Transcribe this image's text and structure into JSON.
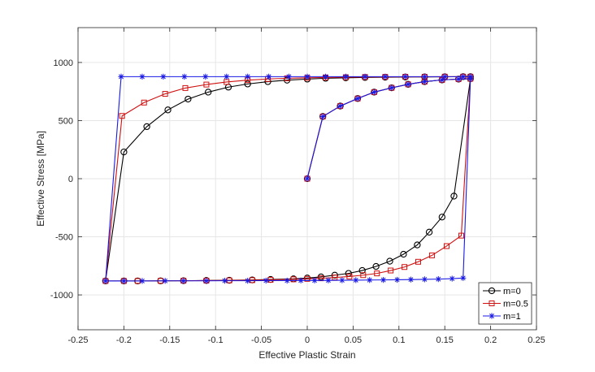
{
  "chart_data": {
    "type": "line",
    "xlabel": "Effective Plastic Strain",
    "ylabel": "Effective Stress [MPa]",
    "xlim": [
      -0.25,
      0.25
    ],
    "ylim": [
      -1300,
      1300
    ],
    "xticks": [
      -0.25,
      -0.2,
      -0.15,
      -0.1,
      -0.05,
      0,
      0.05,
      0.1,
      0.15,
      0.2,
      0.25
    ],
    "xtick_labels": [
      "-0.25",
      "-0.2",
      "-0.15",
      "-0.1",
      "-0.05",
      "0",
      "0.05",
      "0.1",
      "0.15",
      "0.2",
      "0.25"
    ],
    "yticks": [
      -1000,
      -500,
      0,
      500,
      1000
    ],
    "ytick_labels": [
      "-1000",
      "-500",
      "0",
      "500",
      "1000"
    ],
    "grid": true,
    "legend_position": "bottom-right",
    "series": [
      {
        "name": "m=0",
        "color": "#000000",
        "marker": "circle",
        "x": [
          0,
          0.017,
          0.036,
          0.055,
          0.073,
          0.092,
          0.11,
          0.128,
          0.147,
          0.165,
          0.178,
          0.16,
          0.147,
          0.133,
          0.12,
          0.105,
          0.09,
          0.075,
          0.06,
          0.045,
          0.03,
          0.015,
          0,
          -0.015,
          -0.04,
          -0.06,
          -0.085,
          -0.11,
          -0.135,
          -0.16,
          -0.185,
          -0.2,
          -0.22,
          -0.2,
          -0.175,
          -0.152,
          -0.13,
          -0.108,
          -0.086,
          -0.065,
          -0.043,
          -0.022,
          0,
          0.02,
          0.042,
          0.063,
          0.085,
          0.107,
          0.128,
          0.15,
          0.17,
          0.178
        ],
        "y": [
          0,
          535,
          625,
          690,
          745,
          782,
          812,
          835,
          850,
          857,
          860,
          -150,
          -330,
          -460,
          -570,
          -650,
          -710,
          -755,
          -790,
          -815,
          -830,
          -845,
          -855,
          -862,
          -867,
          -871,
          -874,
          -876,
          -878,
          -879,
          -880,
          -880,
          -880,
          230,
          448,
          592,
          685,
          745,
          788,
          815,
          835,
          848,
          857,
          864,
          868,
          871,
          873,
          875,
          876,
          877,
          878,
          878
        ]
      },
      {
        "name": "m=0.5",
        "color": "#d01010",
        "marker": "square",
        "x": [
          0,
          0.017,
          0.036,
          0.055,
          0.073,
          0.092,
          0.11,
          0.128,
          0.147,
          0.165,
          0.178,
          0.168,
          0.152,
          0.136,
          0.121,
          0.106,
          0.091,
          0.076,
          0.061,
          0.046,
          0.03,
          0.015,
          0,
          -0.015,
          -0.04,
          -0.06,
          -0.085,
          -0.11,
          -0.135,
          -0.16,
          -0.185,
          -0.2,
          -0.22,
          -0.202,
          -0.178,
          -0.155,
          -0.133,
          -0.11,
          -0.088,
          -0.065,
          -0.043,
          -0.022,
          0,
          0.02,
          0.042,
          0.063,
          0.085,
          0.107,
          0.128,
          0.15,
          0.17,
          0.178
        ],
        "y": [
          0,
          535,
          625,
          690,
          745,
          782,
          812,
          835,
          850,
          857,
          860,
          -490,
          -580,
          -660,
          -715,
          -760,
          -790,
          -815,
          -830,
          -842,
          -850,
          -857,
          -862,
          -866,
          -870,
          -873,
          -875,
          -877,
          -878,
          -879,
          -880,
          -880,
          -880,
          540,
          655,
          730,
          780,
          810,
          832,
          848,
          858,
          864,
          868,
          871,
          873,
          875,
          876,
          877,
          877,
          878,
          878,
          878
        ]
      },
      {
        "name": "m=1",
        "color": "#1a1ae6",
        "marker": "star",
        "x": [
          0,
          0.017,
          0.036,
          0.055,
          0.073,
          0.092,
          0.11,
          0.128,
          0.147,
          0.165,
          0.178,
          0.17,
          0.158,
          0.143,
          0.128,
          0.113,
          0.098,
          0.083,
          0.068,
          0.053,
          0.038,
          0.023,
          0.008,
          -0.007,
          -0.022,
          -0.045,
          -0.065,
          -0.09,
          -0.11,
          -0.135,
          -0.155,
          -0.18,
          -0.2,
          -0.22,
          -0.203,
          -0.18,
          -0.157,
          -0.134,
          -0.111,
          -0.088,
          -0.065,
          -0.042,
          -0.02,
          0,
          0.02,
          0.042,
          0.063,
          0.085,
          0.107,
          0.128,
          0.15,
          0.17,
          0.178
        ],
        "y": [
          0,
          535,
          625,
          690,
          745,
          782,
          812,
          835,
          850,
          857,
          860,
          -855,
          -860,
          -864,
          -866,
          -868,
          -870,
          -871,
          -872,
          -873,
          -874,
          -875,
          -876,
          -876,
          -877,
          -877,
          -878,
          -878,
          -879,
          -879,
          -879,
          -880,
          -880,
          -880,
          878,
          878,
          878,
          878,
          878,
          878,
          878,
          878,
          878,
          878,
          878,
          878,
          878,
          878,
          878,
          878,
          878,
          878,
          878
        ]
      }
    ]
  }
}
